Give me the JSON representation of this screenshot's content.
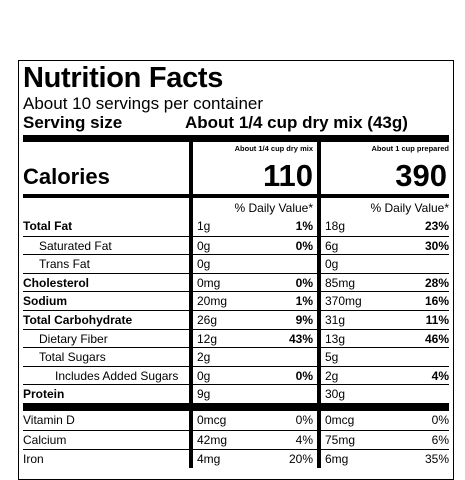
{
  "label": {
    "title": "Nutrition Facts",
    "servings": "About 10 servings per container",
    "serving_size_label": "Serving size",
    "serving_size_value": "About 1/4 cup dry mix (43g)",
    "columns": [
      "About 1/4 cup dry mix",
      "About 1 cup prepared"
    ],
    "calories_label": "Calories",
    "calories": [
      "110",
      "390"
    ],
    "dv_header": "% Daily Value*",
    "rows": [
      {
        "name": "Total Fat",
        "bold": true,
        "indent": 0,
        "a": "1g",
        "ap": "1%",
        "b": "18g",
        "bp": "23%"
      },
      {
        "name": "Saturated Fat",
        "bold": false,
        "indent": 1,
        "a": "0g",
        "ap": "0%",
        "b": "6g",
        "bp": "30%"
      },
      {
        "name": "Trans Fat",
        "bold": false,
        "indent": 1,
        "a": "0g",
        "ap": "",
        "b": "0g",
        "bp": ""
      },
      {
        "name": "Cholesterol",
        "bold": true,
        "indent": 0,
        "a": "0mg",
        "ap": "0%",
        "b": "85mg",
        "bp": "28%"
      },
      {
        "name": "Sodium",
        "bold": true,
        "indent": 0,
        "a": "20mg",
        "ap": "1%",
        "b": "370mg",
        "bp": "16%"
      },
      {
        "name": "Total Carbohydrate",
        "bold": true,
        "indent": 0,
        "a": "26g",
        "ap": "9%",
        "b": "31g",
        "bp": "11%"
      },
      {
        "name": "Dietary Fiber",
        "bold": false,
        "indent": 1,
        "a": "12g",
        "ap": "43%",
        "b": "13g",
        "bp": "46%"
      },
      {
        "name": "Total Sugars",
        "bold": false,
        "indent": 1,
        "a": "2g",
        "ap": "",
        "b": "5g",
        "bp": ""
      },
      {
        "name": "Includes Added Sugars",
        "bold": false,
        "indent": 2,
        "a": "0g",
        "ap": "0%",
        "b": "2g",
        "bp": "4%"
      },
      {
        "name": "Protein",
        "bold": true,
        "indent": 0,
        "a": "9g",
        "ap": "",
        "b": "30g",
        "bp": ""
      }
    ],
    "vitamins": [
      {
        "name": "Vitamin D",
        "a": "0mcg",
        "ap": "0%",
        "b": "0mcg",
        "bp": "0%"
      },
      {
        "name": "Calcium",
        "a": "42mg",
        "ap": "4%",
        "b": "75mg",
        "bp": "6%"
      },
      {
        "name": "Iron",
        "a": "4mg",
        "ap": "20%",
        "b": "6mg",
        "bp": "35%"
      }
    ]
  }
}
